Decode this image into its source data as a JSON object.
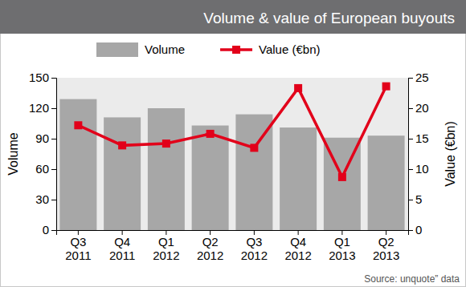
{
  "chart_data": {
    "type": "bar",
    "title": "Volume & value of European buyouts",
    "categories": [
      "Q3 2011",
      "Q4 2011",
      "Q1 2012",
      "Q2 2012",
      "Q3 2012",
      "Q4 2012",
      "Q1 2013",
      "Q2 2013"
    ],
    "series": [
      {
        "name": "Volume",
        "type": "bar",
        "color": "#a7a7a7",
        "values": [
          129,
          111,
          120,
          103,
          114,
          101,
          91,
          93
        ]
      },
      {
        "name": "Value (€bn)",
        "type": "line",
        "axis": "y2",
        "color": "#e2001a",
        "marker": "square",
        "values": [
          17.2,
          13.9,
          14.2,
          15.8,
          13.5,
          23.3,
          8.7,
          23.6
        ]
      }
    ],
    "y_label": "Volume",
    "y2_label": "Value (€bn)",
    "ylim": [
      0,
      150
    ],
    "yticks": [
      0,
      30,
      60,
      90,
      120,
      150
    ],
    "y2lim": [
      0,
      25
    ],
    "y2ticks": [
      0,
      5,
      10,
      15,
      20,
      25
    ],
    "grid": false,
    "legend": "top",
    "source": "Source: unquote” data"
  }
}
